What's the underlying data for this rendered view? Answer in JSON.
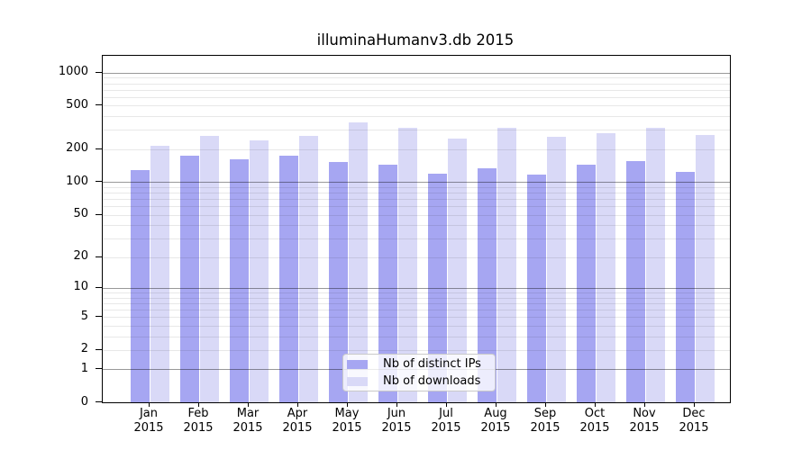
{
  "chart_data": {
    "type": "bar",
    "title": "illuminaHumanv3.db 2015",
    "xlabel": "",
    "ylabel": "",
    "y_scale": "log10(value+1)",
    "ylim": [
      0,
      1420
    ],
    "grid": "on",
    "legend_position": "inside-bottom-center",
    "y_ticks": [
      1000,
      500,
      200,
      100,
      50,
      20,
      10,
      5,
      2,
      1,
      0
    ],
    "categories": [
      "Jan 2015",
      "Feb 2015",
      "Mar 2015",
      "Apr 2015",
      "May 2015",
      "Jun 2015",
      "Jul 2015",
      "Aug 2015",
      "Sep 2015",
      "Oct 2015",
      "Nov 2015",
      "Dec 2015"
    ],
    "series": [
      {
        "name": "Nb of distinct IPs",
        "color": "#a6a6f2",
        "values": [
          129,
          176,
          163,
          174,
          153,
          144,
          120,
          135,
          117,
          145,
          156,
          124
        ]
      },
      {
        "name": "Nb of downloads",
        "color": "#d9d9f7",
        "values": [
          214,
          267,
          242,
          267,
          355,
          312,
          249,
          313,
          261,
          279,
          317,
          272
        ]
      }
    ]
  }
}
